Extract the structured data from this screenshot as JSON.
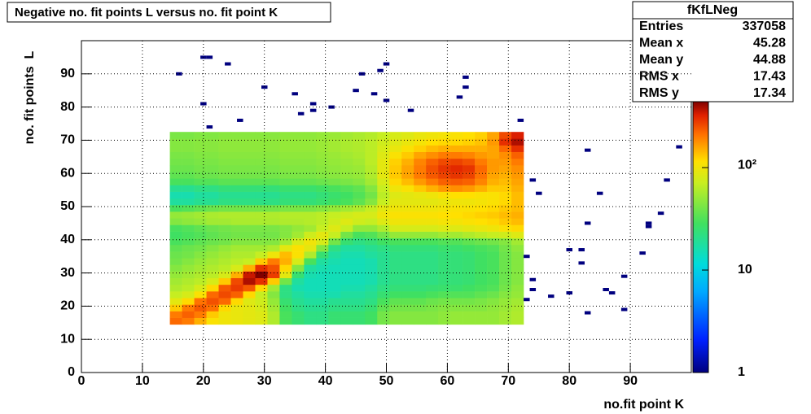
{
  "chart_data": {
    "type": "heatmap",
    "title": "Negative no. fit points L versus no. fit point K",
    "x_label": "no.fit point K",
    "y_label": "no. fit points  L",
    "xlim": [
      0,
      100
    ],
    "ylim": [
      0,
      100
    ],
    "xticks": [
      0,
      10,
      20,
      30,
      40,
      50,
      60,
      70,
      80,
      90
    ],
    "yticks": [
      0,
      10,
      20,
      30,
      40,
      50,
      60,
      70,
      80,
      90
    ],
    "grid": true,
    "zlim": [
      1,
      440
    ],
    "zlog": true,
    "zticks": [
      1,
      10,
      {
        "value": 100,
        "label": "10²"
      }
    ],
    "xbins": [
      14.5,
      16.5,
      18.5,
      20.5,
      22.5,
      24.5,
      26.5,
      28.5,
      30.5,
      32.5,
      34.5,
      36.5,
      38.5,
      40.5,
      42.5,
      44.5,
      46.5,
      48.5,
      50.5,
      52.5,
      54.5,
      56.5,
      58.5,
      60.5,
      62.5,
      64.5,
      66.5,
      68.5,
      70.5,
      72.5
    ],
    "ybins": [
      14.5,
      16.5,
      18.5,
      20.5,
      22.5,
      24.5,
      26.5,
      28.5,
      30.5,
      32.5,
      34.5,
      36.5,
      38.5,
      40.5,
      42.5,
      44.5,
      46.5,
      48.5,
      50.5,
      52.5,
      54.5,
      56.5,
      58.5,
      60.5,
      62.5,
      64.5,
      66.5,
      68.5,
      70.5,
      72.5
    ],
    "values": [
      [
        220,
        200,
        150,
        110,
        100,
        95,
        90,
        85,
        60,
        30,
        25,
        22,
        22,
        25,
        25,
        25,
        28,
        40,
        45,
        45,
        45,
        45,
        48,
        50,
        50,
        50,
        50,
        55,
        60
      ],
      [
        200,
        230,
        200,
        130,
        100,
        95,
        90,
        85,
        60,
        30,
        25,
        22,
        22,
        25,
        25,
        25,
        28,
        40,
        45,
        45,
        45,
        45,
        48,
        50,
        50,
        50,
        50,
        55,
        60
      ],
      [
        130,
        200,
        240,
        210,
        120,
        95,
        90,
        80,
        55,
        28,
        22,
        20,
        20,
        22,
        22,
        22,
        25,
        35,
        40,
        40,
        40,
        42,
        45,
        45,
        45,
        45,
        48,
        52,
        58
      ],
      [
        90,
        120,
        210,
        250,
        220,
        120,
        85,
        75,
        50,
        25,
        20,
        18,
        18,
        20,
        20,
        20,
        22,
        30,
        35,
        35,
        35,
        38,
        40,
        40,
        40,
        42,
        45,
        50,
        55
      ],
      [
        70,
        80,
        110,
        220,
        260,
        230,
        120,
        70,
        45,
        22,
        18,
        16,
        16,
        16,
        18,
        18,
        20,
        25,
        28,
        28,
        28,
        30,
        32,
        32,
        32,
        35,
        38,
        45,
        50
      ],
      [
        60,
        65,
        80,
        120,
        240,
        280,
        240,
        120,
        55,
        22,
        16,
        15,
        15,
        15,
        16,
        16,
        18,
        22,
        24,
        24,
        24,
        25,
        26,
        26,
        28,
        30,
        32,
        40,
        48
      ],
      [
        55,
        60,
        65,
        80,
        130,
        260,
        380,
        300,
        130,
        40,
        18,
        15,
        15,
        15,
        15,
        15,
        16,
        20,
        22,
        22,
        22,
        22,
        24,
        24,
        25,
        28,
        30,
        38,
        45
      ],
      [
        50,
        55,
        60,
        65,
        80,
        150,
        350,
        440,
        280,
        90,
        25,
        16,
        15,
        15,
        15,
        15,
        16,
        20,
        22,
        22,
        22,
        22,
        24,
        24,
        25,
        28,
        30,
        38,
        45
      ],
      [
        45,
        50,
        55,
        60,
        65,
        80,
        150,
        300,
        250,
        120,
        45,
        18,
        16,
        15,
        15,
        15,
        16,
        20,
        22,
        22,
        22,
        22,
        24,
        24,
        25,
        28,
        30,
        38,
        45
      ],
      [
        40,
        45,
        50,
        55,
        60,
        65,
        70,
        130,
        200,
        150,
        80,
        30,
        18,
        16,
        15,
        15,
        16,
        20,
        22,
        22,
        22,
        22,
        24,
        24,
        25,
        28,
        30,
        38,
        45
      ],
      [
        38,
        40,
        45,
        50,
        55,
        60,
        60,
        70,
        100,
        140,
        110,
        60,
        25,
        18,
        16,
        16,
        18,
        20,
        22,
        22,
        22,
        22,
        24,
        24,
        25,
        28,
        30,
        38,
        45
      ],
      [
        35,
        38,
        40,
        45,
        50,
        55,
        55,
        55,
        60,
        90,
        110,
        90,
        45,
        22,
        18,
        18,
        20,
        22,
        24,
        24,
        24,
        24,
        26,
        26,
        28,
        30,
        32,
        40,
        48
      ],
      [
        30,
        32,
        35,
        38,
        40,
        45,
        45,
        45,
        45,
        55,
        80,
        100,
        80,
        40,
        25,
        22,
        24,
        28,
        30,
        30,
        30,
        30,
        32,
        32,
        35,
        38,
        40,
        45,
        55
      ],
      [
        28,
        30,
        32,
        35,
        38,
        40,
        40,
        40,
        40,
        45,
        55,
        75,
        90,
        70,
        40,
        30,
        32,
        40,
        50,
        50,
        50,
        50,
        55,
        55,
        60,
        65,
        70,
        75,
        85
      ],
      [
        30,
        32,
        35,
        38,
        40,
        42,
        42,
        42,
        42,
        45,
        50,
        55,
        70,
        85,
        70,
        50,
        50,
        60,
        80,
        80,
        80,
        80,
        85,
        85,
        90,
        95,
        100,
        110,
        120
      ],
      [
        45,
        48,
        50,
        55,
        55,
        58,
        58,
        58,
        58,
        60,
        60,
        62,
        65,
        75,
        85,
        75,
        70,
        85,
        100,
        100,
        100,
        100,
        105,
        105,
        110,
        115,
        120,
        130,
        140
      ],
      [
        50,
        52,
        55,
        58,
        60,
        60,
        60,
        60,
        60,
        62,
        62,
        62,
        65,
        70,
        75,
        80,
        80,
        100,
        110,
        110,
        110,
        110,
        115,
        115,
        120,
        125,
        130,
        140,
        150
      ],
      [
        30,
        32,
        35,
        38,
        40,
        40,
        40,
        40,
        40,
        42,
        42,
        42,
        45,
        50,
        55,
        60,
        70,
        90,
        100,
        100,
        100,
        100,
        105,
        110,
        110,
        115,
        120,
        130,
        140
      ],
      [
        18,
        18,
        20,
        20,
        22,
        22,
        22,
        22,
        22,
        24,
        24,
        24,
        26,
        28,
        30,
        35,
        45,
        70,
        90,
        90,
        90,
        90,
        95,
        100,
        100,
        105,
        110,
        120,
        140
      ],
      [
        16,
        16,
        18,
        18,
        20,
        20,
        20,
        20,
        20,
        22,
        22,
        22,
        24,
        26,
        28,
        32,
        40,
        65,
        85,
        90,
        95,
        100,
        110,
        115,
        115,
        110,
        110,
        120,
        140
      ],
      [
        20,
        20,
        22,
        22,
        24,
        24,
        24,
        24,
        24,
        26,
        26,
        26,
        28,
        30,
        32,
        35,
        45,
        70,
        100,
        110,
        130,
        150,
        170,
        180,
        170,
        150,
        130,
        130,
        150
      ],
      [
        30,
        30,
        32,
        32,
        34,
        34,
        34,
        34,
        34,
        36,
        36,
        36,
        38,
        40,
        42,
        45,
        55,
        80,
        120,
        140,
        170,
        200,
        230,
        240,
        230,
        190,
        150,
        140,
        160
      ],
      [
        35,
        35,
        38,
        38,
        40,
        40,
        40,
        40,
        40,
        42,
        42,
        42,
        44,
        46,
        48,
        50,
        60,
        90,
        130,
        160,
        200,
        240,
        270,
        290,
        270,
        210,
        160,
        150,
        170
      ],
      [
        38,
        38,
        40,
        40,
        42,
        42,
        42,
        42,
        42,
        44,
        44,
        44,
        46,
        48,
        50,
        52,
        62,
        90,
        130,
        160,
        200,
        250,
        290,
        310,
        290,
        220,
        170,
        160,
        180
      ],
      [
        40,
        40,
        42,
        42,
        44,
        44,
        44,
        44,
        44,
        46,
        46,
        46,
        48,
        50,
        52,
        55,
        65,
        90,
        125,
        150,
        190,
        230,
        260,
        270,
        250,
        200,
        170,
        170,
        200
      ],
      [
        42,
        42,
        44,
        44,
        46,
        46,
        46,
        46,
        46,
        48,
        48,
        48,
        50,
        52,
        55,
        58,
        65,
        85,
        110,
        130,
        160,
        180,
        200,
        200,
        190,
        170,
        160,
        180,
        230
      ],
      [
        45,
        45,
        46,
        46,
        48,
        48,
        48,
        48,
        48,
        50,
        50,
        50,
        52,
        55,
        58,
        60,
        65,
        80,
        95,
        110,
        125,
        140,
        150,
        150,
        150,
        150,
        160,
        220,
        300
      ],
      [
        45,
        45,
        46,
        46,
        48,
        48,
        48,
        48,
        48,
        50,
        50,
        50,
        52,
        55,
        58,
        60,
        65,
        75,
        85,
        95,
        105,
        115,
        120,
        120,
        125,
        135,
        170,
        300,
        380
      ],
      [
        42,
        42,
        44,
        44,
        46,
        46,
        46,
        46,
        46,
        48,
        48,
        48,
        50,
        52,
        55,
        58,
        62,
        70,
        80,
        85,
        95,
        100,
        105,
        110,
        115,
        125,
        160,
        260,
        330
      ]
    ],
    "outliers": {
      "x": [
        16,
        20,
        21,
        24,
        20,
        21,
        26,
        30,
        35,
        36,
        38,
        38,
        41,
        45,
        46,
        48,
        49,
        50,
        50,
        54,
        62,
        63,
        63,
        72,
        74,
        75,
        83,
        85,
        83,
        98,
        96,
        95,
        93,
        93,
        92,
        80,
        82,
        82,
        73,
        74,
        74,
        73,
        77,
        80,
        86,
        87,
        89,
        83,
        89
      ],
      "y": [
        90,
        95,
        95,
        93,
        81,
        74,
        76,
        86,
        84,
        78,
        81,
        79,
        80,
        85,
        90,
        84,
        91,
        93,
        82,
        79,
        83,
        86,
        89,
        76,
        58,
        54,
        67,
        54,
        45,
        68,
        58,
        48,
        45,
        44,
        36,
        37,
        37,
        33,
        35,
        28,
        25,
        22,
        23,
        24,
        25,
        24,
        29,
        18,
        19
      ],
      "values": [
        1,
        1,
        1,
        1,
        1,
        1,
        1,
        1,
        1,
        1,
        1,
        1,
        1,
        1,
        1,
        1,
        1,
        1,
        1,
        1,
        1,
        1,
        1,
        1,
        1,
        1,
        1,
        1,
        1,
        1,
        1,
        1,
        1,
        1,
        1,
        1,
        1,
        1,
        1,
        1,
        1,
        1,
        1,
        1,
        1,
        1,
        1,
        1,
        1
      ]
    },
    "stats": {
      "title": "fKfLNeg",
      "rows": [
        [
          "Entries",
          337058
        ],
        [
          "Mean x",
          45.28
        ],
        [
          "Mean y",
          44.88
        ],
        [
          "RMS x",
          17.43
        ],
        [
          "RMS y",
          17.34
        ]
      ]
    }
  }
}
